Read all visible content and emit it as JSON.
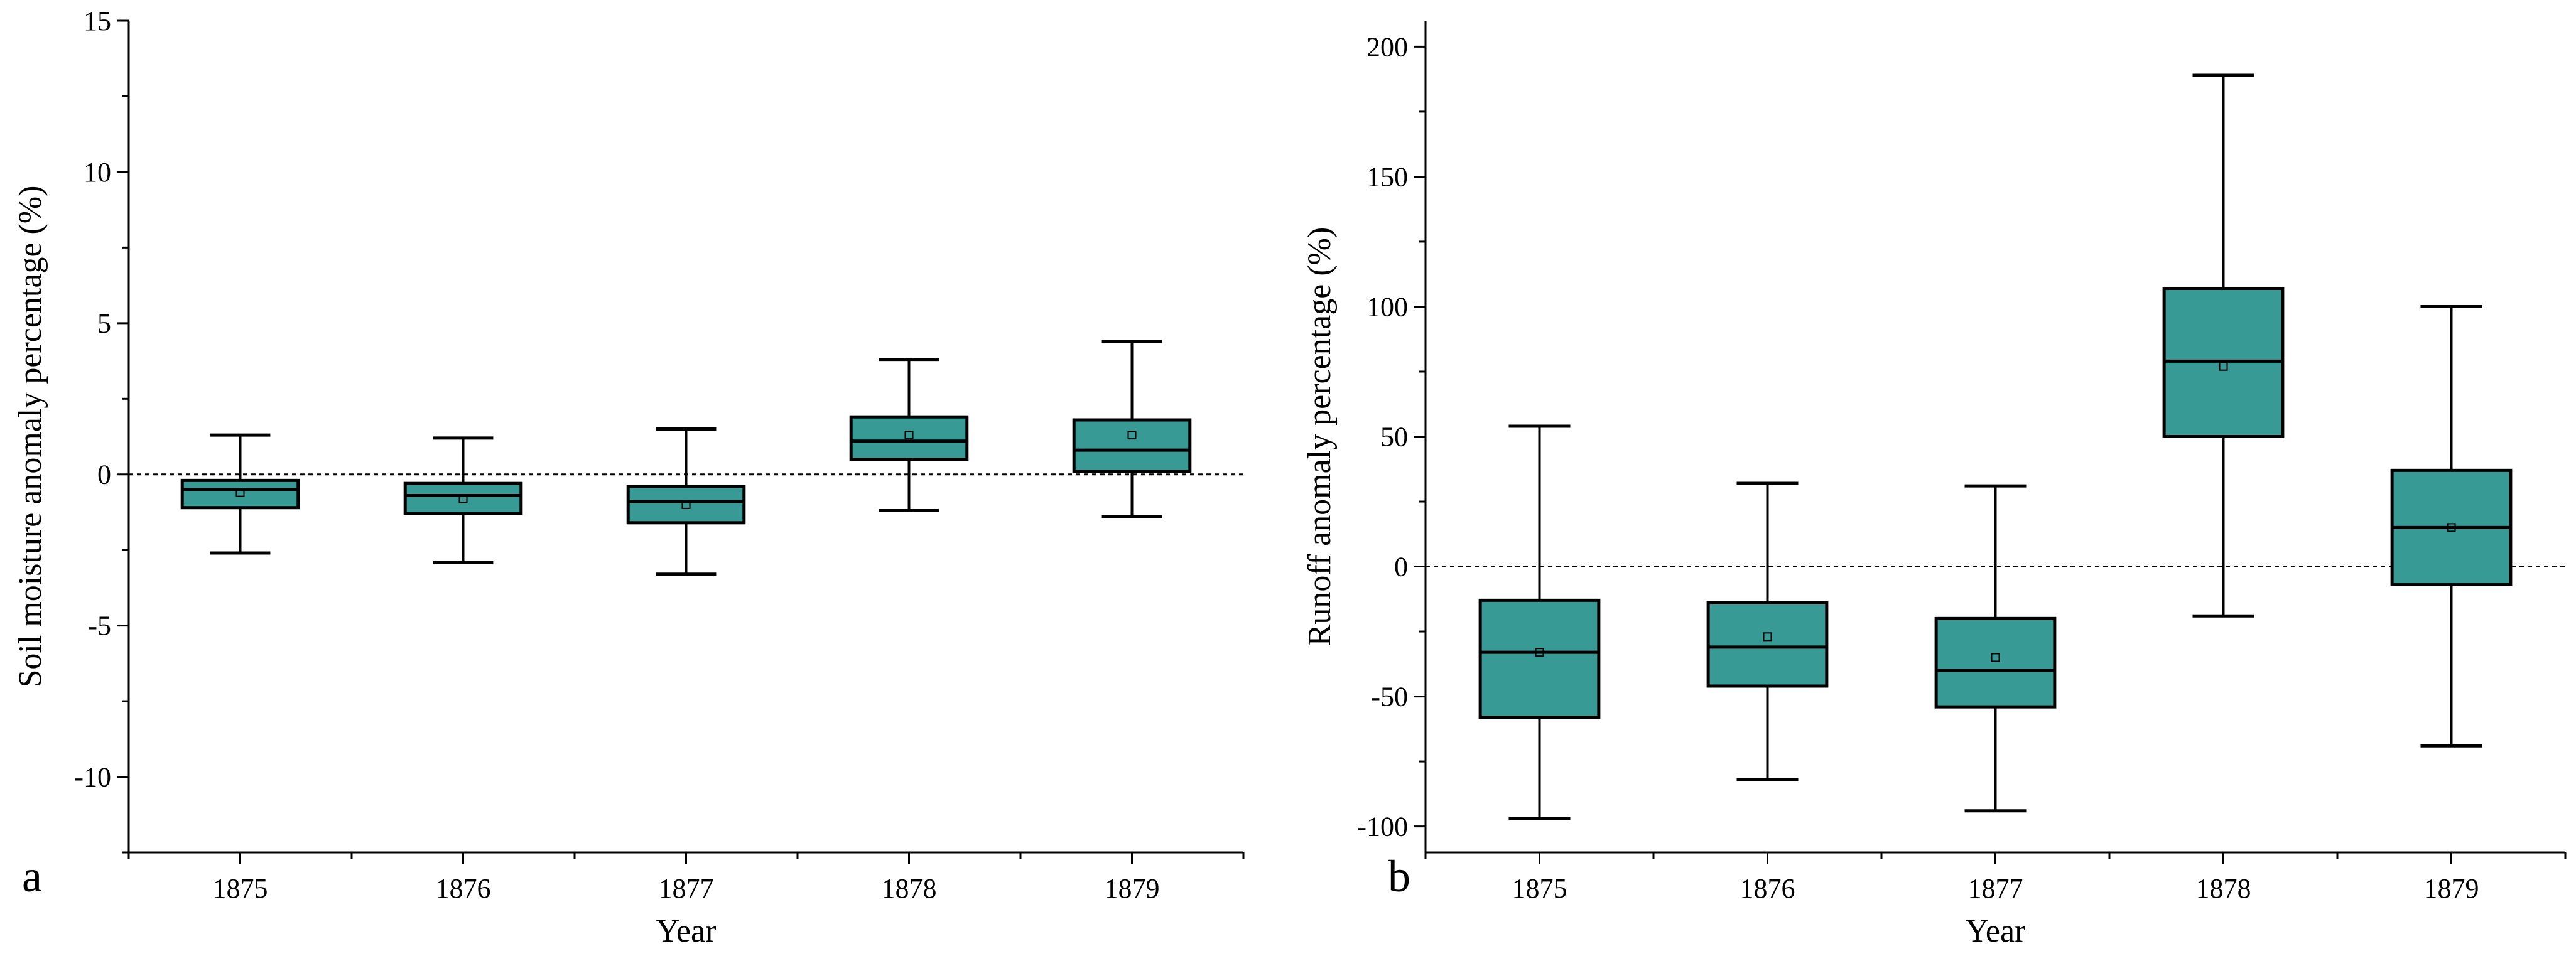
{
  "colors": {
    "box_fill": "#389a94",
    "stroke": "#000000",
    "background": "#ffffff"
  },
  "chart_data": [
    {
      "type": "box",
      "panel_label": "a",
      "xlabel": "Year",
      "ylabel": "Soil moisture anomaly percentage (%)",
      "ylim": [
        -12.5,
        15
      ],
      "yticks": [
        -10,
        -5,
        0,
        5,
        10,
        15
      ],
      "tick_labels": [
        "-10",
        "-5",
        "0",
        "5",
        "10",
        "15"
      ],
      "reference_line": 0,
      "categories": [
        "1875",
        "1876",
        "1877",
        "1878",
        "1879"
      ],
      "boxes": [
        {
          "year": "1875",
          "whisker_low": -2.6,
          "q1": -1.1,
          "median": -0.5,
          "q3": -0.2,
          "whisker_high": 1.3,
          "mean": -0.6
        },
        {
          "year": "1876",
          "whisker_low": -2.9,
          "q1": -1.3,
          "median": -0.7,
          "q3": -0.3,
          "whisker_high": 1.2,
          "mean": -0.8
        },
        {
          "year": "1877",
          "whisker_low": -3.3,
          "q1": -1.6,
          "median": -0.9,
          "q3": -0.4,
          "whisker_high": 1.5,
          "mean": -1.0
        },
        {
          "year": "1878",
          "whisker_low": -1.2,
          "q1": 0.5,
          "median": 1.1,
          "q3": 1.9,
          "whisker_high": 3.8,
          "mean": 1.3
        },
        {
          "year": "1879",
          "whisker_low": -1.4,
          "q1": 0.1,
          "median": 0.8,
          "q3": 1.8,
          "whisker_high": 4.4,
          "mean": 1.3
        }
      ]
    },
    {
      "type": "box",
      "panel_label": "b",
      "xlabel": "Year",
      "ylabel": "Runoff anomaly percentage (%)",
      "ylim": [
        -110,
        210
      ],
      "yticks": [
        -100,
        -50,
        0,
        50,
        100,
        150,
        200
      ],
      "tick_labels": [
        "-100",
        "-50",
        "0",
        "50",
        "100",
        "150",
        "200"
      ],
      "reference_line": 0,
      "categories": [
        "1875",
        "1876",
        "1877",
        "1878",
        "1879"
      ],
      "boxes": [
        {
          "year": "1875",
          "whisker_low": -97,
          "q1": -58,
          "median": -33,
          "q3": -13,
          "whisker_high": 54,
          "mean": -33
        },
        {
          "year": "1876",
          "whisker_low": -82,
          "q1": -46,
          "median": -31,
          "q3": -14,
          "whisker_high": 32,
          "mean": -27
        },
        {
          "year": "1877",
          "whisker_low": -94,
          "q1": -54,
          "median": -40,
          "q3": -20,
          "whisker_high": 31,
          "mean": -35
        },
        {
          "year": "1878",
          "whisker_low": -19,
          "q1": 50,
          "median": 79,
          "q3": 107,
          "whisker_high": 189,
          "mean": 77
        },
        {
          "year": "1879",
          "whisker_low": -69,
          "q1": -7,
          "median": 15,
          "q3": 37,
          "whisker_high": 100,
          "mean": 15
        }
      ]
    }
  ]
}
